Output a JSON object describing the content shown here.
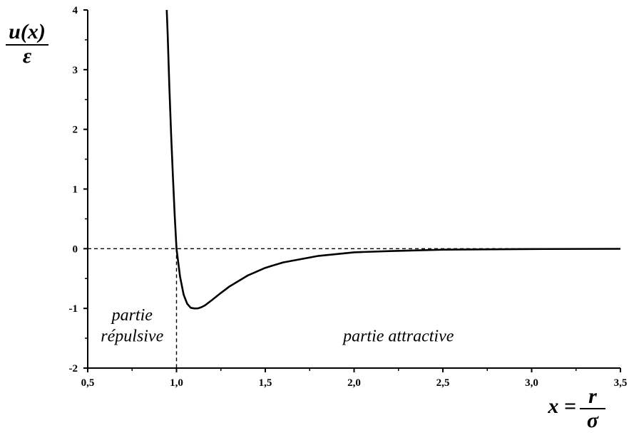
{
  "chart_data": {
    "type": "line",
    "title": "",
    "ylabel": {
      "numerator": "u(x)",
      "denominator": "ε"
    },
    "xlabel": {
      "lhs": "x =",
      "numerator": "r",
      "denominator": "σ"
    },
    "xlim": [
      0.5,
      3.5
    ],
    "ylim": [
      -2,
      4
    ],
    "xticks": [
      0.5,
      1.0,
      1.5,
      2.0,
      2.5,
      3.0,
      3.5
    ],
    "xtick_labels": [
      "0,5",
      "1,0",
      "1,5",
      "2,0",
      "2,5",
      "3,0",
      "3,5"
    ],
    "yticks": [
      -2,
      -1,
      0,
      1,
      2,
      3,
      4
    ],
    "ytick_labels": [
      "-2",
      "-1",
      "0",
      "1",
      "2",
      "3",
      "4"
    ],
    "grid": false,
    "series": [
      {
        "x": [
          0.945,
          0.95,
          0.96,
          0.97,
          0.98,
          0.99,
          1.0,
          1.02,
          1.04,
          1.06,
          1.08,
          1.1,
          1.12,
          1.14,
          1.16,
          1.2,
          1.25,
          1.3,
          1.4,
          1.5,
          1.6,
          1.8,
          2.0,
          2.2,
          2.5,
          3.0,
          3.5
        ],
        "y": [
          4.0,
          3.6,
          2.7,
          1.9,
          1.2,
          0.55,
          0.0,
          -0.47,
          -0.77,
          -0.92,
          -0.99,
          -1.0,
          -1.0,
          -0.98,
          -0.95,
          -0.86,
          -0.74,
          -0.63,
          -0.45,
          -0.32,
          -0.23,
          -0.12,
          -0.06,
          -0.04,
          -0.016,
          -0.005,
          -0.002
        ]
      }
    ],
    "reference_lines": [
      {
        "orientation": "horizontal",
        "value": 0,
        "style": "dashed"
      },
      {
        "orientation": "vertical",
        "value": 1.0,
        "style": "dashed"
      }
    ],
    "annotations": [
      {
        "text": "partie",
        "x": 0.75,
        "y": -1.2
      },
      {
        "text": "répulsive",
        "x": 0.75,
        "y": -1.55
      },
      {
        "text": "partie attractive",
        "x": 2.25,
        "y": -1.55
      }
    ]
  }
}
